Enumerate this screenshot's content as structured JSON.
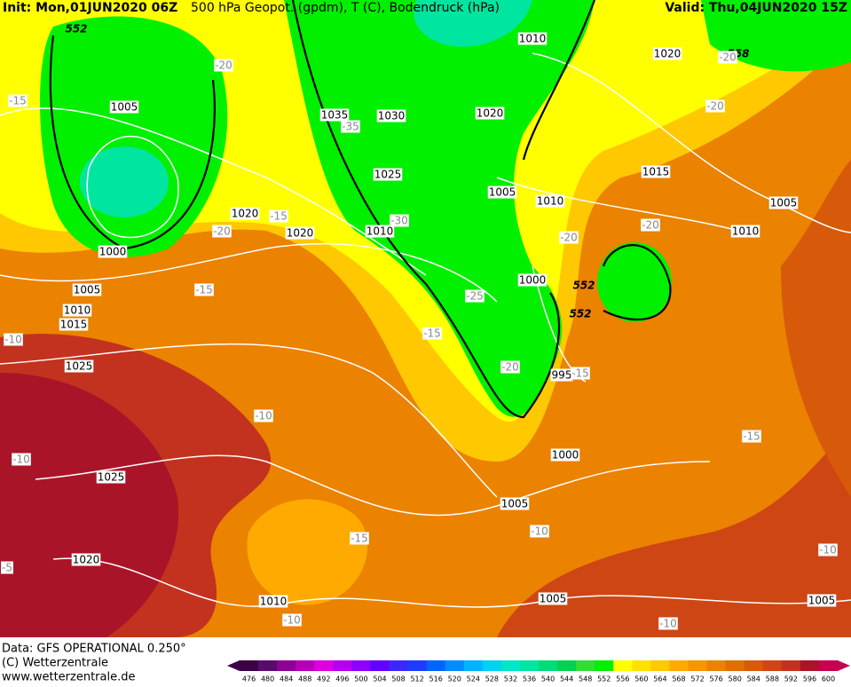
{
  "header": {
    "init": "Init: Mon,01JUN2020 06Z",
    "title": "500 hPa Geopot. (gpdm), T (C), Bodendruck (hPa)",
    "valid": "Valid: Thu,04JUN2020 15Z"
  },
  "footer": {
    "data_source": "Data: GFS OPERATIONAL 0.250°",
    "copyright": "(C) Wetterzentrale",
    "url": "www.wetterzentrale.de"
  },
  "colorbar": {
    "ticks": [
      476,
      480,
      484,
      488,
      492,
      496,
      500,
      504,
      508,
      512,
      516,
      520,
      524,
      528,
      532,
      536,
      540,
      544,
      548,
      552,
      556,
      560,
      564,
      568,
      572,
      576,
      580,
      584,
      588,
      592,
      596,
      600
    ],
    "colors": [
      "#3c0046",
      "#5a0a6e",
      "#8c0096",
      "#b400b4",
      "#dc00dc",
      "#b400f0",
      "#8c00ff",
      "#6400ff",
      "#3c28ff",
      "#1e3cff",
      "#0064ff",
      "#008cff",
      "#00b4ff",
      "#00d2f0",
      "#00e6c8",
      "#00e6a0",
      "#00dc78",
      "#00d250",
      "#32dc32",
      "#00f000",
      "#ffff00",
      "#ffe100",
      "#ffc800",
      "#ffaa00",
      "#f59600",
      "#eb8200",
      "#e16e00",
      "#d75a0a",
      "#cd4614",
      "#c3321e",
      "#aa1428",
      "#c80050"
    ]
  },
  "map_labels": {
    "isobars": [
      1010,
      1020,
      1005,
      1035,
      1030,
      1020,
      1025,
      1015,
      1005,
      1010,
      1005,
      1020,
      1010,
      1020,
      1010,
      1000,
      1000,
      1005,
      1010,
      1015,
      1025,
      995,
      1000,
      1025,
      1005,
      1020,
      1010,
      1005,
      1005
    ],
    "geopotential": [
      552,
      558,
      552,
      552
    ],
    "temperature": [
      -20,
      -20,
      -15,
      -35,
      -20,
      -15,
      -30,
      -20,
      -20,
      -20,
      -25,
      -15,
      -10,
      -15,
      -20,
      -15,
      -10,
      -15,
      -10,
      -15,
      -10,
      -5,
      -10,
      -10,
      -10
    ]
  }
}
